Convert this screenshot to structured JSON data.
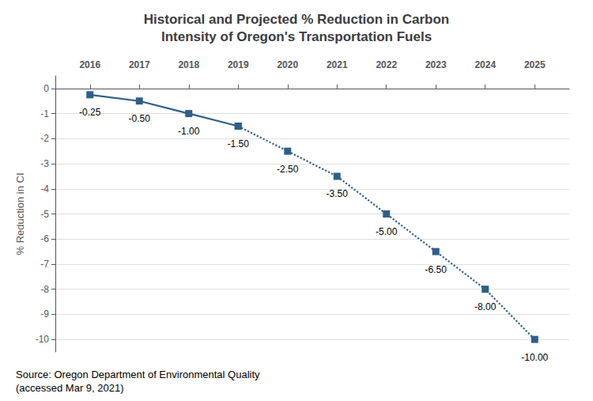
{
  "chart_data": {
    "type": "line",
    "title": "Historical and Projected % Reduction in Carbon\nIntensity of Oregon's Transportation Fuels",
    "ylabel": "% Reduction in CI",
    "annotations": [
      "Source: Oregon Department of Environmental Quality\n(accessed Mar 9, 2021)"
    ],
    "x": [
      2016,
      2017,
      2018,
      2019,
      2020,
      2021,
      2022,
      2023,
      2024,
      2025
    ],
    "series": [
      {
        "color": "#2E5F8A",
        "line_style": "solid",
        "marker": "square",
        "values": [
          -0.25,
          -0.5,
          -1.0,
          -1.5,
          null,
          null,
          null,
          null,
          null,
          null
        ],
        "value_labels": [
          "-0.25",
          "-0.50",
          "-1.00",
          "-1.50",
          null,
          null,
          null,
          null,
          null,
          null
        ]
      },
      {
        "color": "#2E5F8A",
        "line_style": "dotted",
        "marker": "square",
        "values": [
          null,
          null,
          null,
          -1.5,
          -2.5,
          -3.5,
          -5.0,
          -6.5,
          -8.0,
          -10.0
        ],
        "value_labels": [
          null,
          null,
          null,
          null,
          "-2.50",
          "-3.50",
          "-5.00",
          "-6.50",
          "-8.00",
          "-10.00"
        ]
      }
    ],
    "xlim": [
      2015.3,
      2025.7
    ],
    "xticks": [
      2016,
      2017,
      2018,
      2019,
      2020,
      2021,
      2022,
      2023,
      2024,
      2025
    ],
    "ylim": [
      -10.5,
      0.5
    ],
    "yticks": [
      0,
      -1,
      -2,
      -3,
      -4,
      -5,
      -6,
      -7,
      -8,
      -9,
      -10
    ],
    "grid": true,
    "data_labels": true
  }
}
